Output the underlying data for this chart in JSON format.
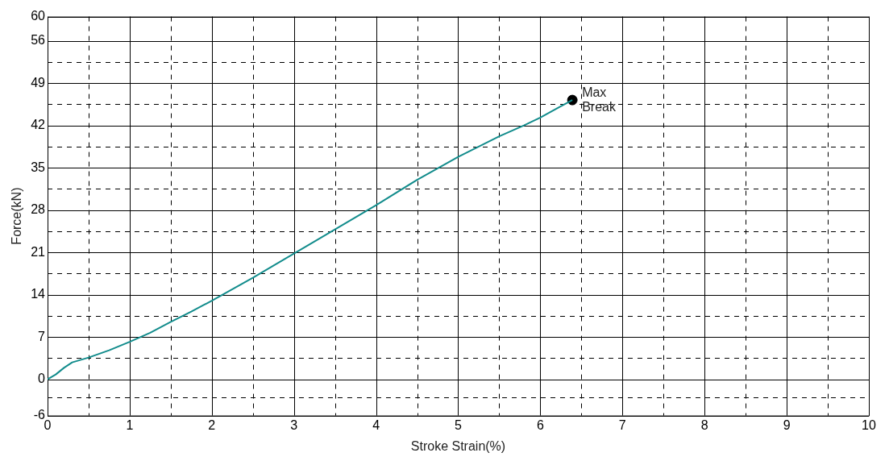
{
  "chart_data": {
    "type": "line",
    "xlabel": "Stroke Strain(%)",
    "ylabel": "Force(kN)",
    "series": [
      {
        "color": "#128c8c",
        "x": [
          0,
          0.1,
          0.2,
          0.3,
          0.5,
          0.75,
          1,
          1.25,
          1.5,
          1.75,
          2,
          2.5,
          3,
          3.5,
          4,
          4.5,
          5,
          5.5,
          5.8,
          6,
          6.2,
          6.39
        ],
        "values": [
          0,
          0.8,
          1.9,
          2.8,
          3.6,
          4.8,
          6.2,
          7.7,
          9.5,
          11.2,
          13,
          16.8,
          20.8,
          24.8,
          28.8,
          33,
          36.8,
          40.2,
          42,
          43.3,
          44.8,
          46.2
        ]
      },
      {
        "type": "scatter",
        "color": "#000000",
        "marker": "circle",
        "x": [
          6.39
        ],
        "values": [
          46.2
        ]
      }
    ],
    "xlim": [
      0,
      10
    ],
    "xticks": [
      0,
      {
        "value": 0.5,
        "label": null
      },
      1,
      {
        "value": 1.5,
        "label": null
      },
      2,
      {
        "value": 2.5,
        "label": null
      },
      3,
      {
        "value": 3.5,
        "label": null
      },
      4,
      {
        "value": 4.5,
        "label": null
      },
      5,
      {
        "value": 5.5,
        "label": null
      },
      6,
      {
        "value": 6.5,
        "label": null
      },
      7,
      {
        "value": 7.5,
        "label": null
      },
      8,
      {
        "value": 8.5,
        "label": null
      },
      9,
      {
        "value": 9.5,
        "label": null
      },
      10
    ],
    "ylim": [
      -6,
      60
    ],
    "yticks": [
      -6,
      {
        "value": -3,
        "label": null
      },
      0,
      {
        "value": 3.5,
        "label": null
      },
      7,
      {
        "value": 10.5,
        "label": null
      },
      14,
      {
        "value": 17.5,
        "label": null
      },
      21,
      {
        "value": 24.5,
        "label": null
      },
      28,
      {
        "value": 31.5,
        "label": null
      },
      35,
      {
        "value": 38.5,
        "label": null
      },
      42,
      {
        "value": 45.5,
        "label": null
      },
      49,
      {
        "value": 52.5,
        "label": null
      },
      56,
      60
    ],
    "grid": true,
    "annotations": [
      {
        "text": "Max",
        "x": 6.39,
        "y": 46.2
      },
      {
        "text": "Break",
        "x": 6.39,
        "y": 46.2
      }
    ]
  }
}
